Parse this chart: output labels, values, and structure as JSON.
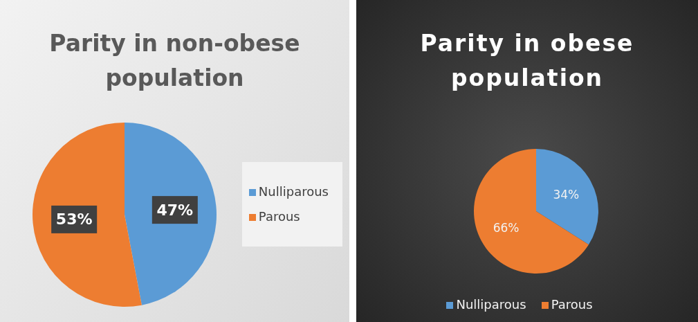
{
  "chart_data": [
    {
      "type": "pie",
      "title": "Parity in non-obese population",
      "categories": [
        "Nulliparous",
        "Parous"
      ],
      "values": [
        47,
        53
      ],
      "colors": [
        "#5b9bd5",
        "#ed7d31"
      ],
      "value_labels": [
        "47%",
        "53%"
      ],
      "legend": "right"
    },
    {
      "type": "pie",
      "title": "Parity in obese population",
      "categories": [
        "Nulliparous",
        "Parous"
      ],
      "values": [
        34,
        66
      ],
      "colors": [
        "#5b9bd5",
        "#ed7d31"
      ],
      "value_labels": [
        "34%",
        "66%"
      ],
      "legend": "bottom"
    }
  ]
}
